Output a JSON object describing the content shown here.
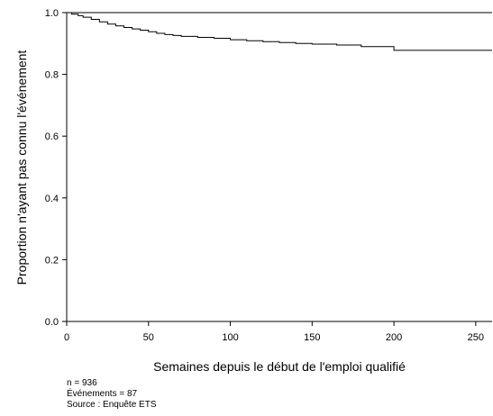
{
  "chart_data": {
    "type": "line",
    "title": "",
    "xlabel": "Semaines depuis le début de l'emploi qualifié",
    "ylabel": "Proportion n'ayant pas connu l'événement",
    "xlim": [
      0,
      260
    ],
    "ylim": [
      0,
      1.0
    ],
    "xticks": [
      0,
      50,
      100,
      150,
      200,
      250
    ],
    "yticks": [
      0.0,
      0.2,
      0.4,
      0.6,
      0.8,
      1.0
    ],
    "xtick_labels": [
      "0",
      "50",
      "100",
      "150",
      "200",
      "250"
    ],
    "ytick_labels": [
      "0.0",
      "0.2",
      "0.4",
      "0.6",
      "0.8",
      "1.0"
    ],
    "grid": false,
    "legend": "none",
    "step": true,
    "series": [
      {
        "x": [
          0,
          3,
          7,
          10,
          15,
          20,
          25,
          30,
          35,
          40,
          45,
          50,
          55,
          60,
          65,
          70,
          80,
          90,
          100,
          110,
          120,
          130,
          140,
          150,
          165,
          180,
          200,
          260
        ],
        "y": [
          1.0,
          0.995,
          0.99,
          0.985,
          0.978,
          0.97,
          0.963,
          0.957,
          0.952,
          0.947,
          0.943,
          0.938,
          0.933,
          0.929,
          0.926,
          0.923,
          0.92,
          0.917,
          0.912,
          0.909,
          0.906,
          0.903,
          0.9,
          0.898,
          0.895,
          0.89,
          0.878,
          0.878
        ]
      }
    ]
  },
  "notes": {
    "n": "n = 936",
    "events": "Événements = 87",
    "source": "Source : Enquête ETS"
  }
}
